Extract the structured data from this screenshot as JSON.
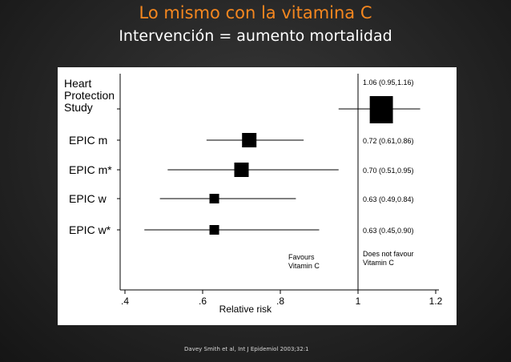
{
  "slide": {
    "title": "Lo mismo con la vitamina C",
    "subtitle": "Intervención = aumento mortalidad",
    "citation": "Davey Smith et al, Int J Epidemiol 2003;32:1"
  },
  "colors": {
    "background": "#262626",
    "title": "#f5871f",
    "subtitle": "#ffffff",
    "plot_ink": "#000000",
    "figure_background": "#ffffff"
  },
  "chart_data": {
    "type": "forest",
    "xlabel": "Relative risk",
    "xlim": [
      0.4,
      1.2
    ],
    "reference_line": 1,
    "ticks": [
      {
        "value": 0.4,
        "label": ".4"
      },
      {
        "value": 0.6,
        "label": ".6"
      },
      {
        "value": 0.8,
        "label": ".8"
      },
      {
        "value": 1,
        "label": "1"
      },
      {
        "value": 1.2,
        "label": "1.2"
      }
    ],
    "annotation_left": [
      "Favours",
      "Vitamin C"
    ],
    "annotation_right": [
      "Does not favour",
      "Vitamin C"
    ],
    "studies": [
      {
        "label_lines": [
          "Heart",
          "Protection",
          "Study"
        ],
        "estimate": 1.06,
        "ci_low": 0.95,
        "ci_high": 1.16,
        "text": "1.06 (0.95,1.16)",
        "weight": 3
      },
      {
        "label_lines": [
          "EPIC m"
        ],
        "estimate": 0.72,
        "ci_low": 0.61,
        "ci_high": 0.86,
        "text": "0.72 (0.61,0.86)",
        "weight": 2
      },
      {
        "label_lines": [
          "EPIC m*"
        ],
        "estimate": 0.7,
        "ci_low": 0.51,
        "ci_high": 0.95,
        "text": "0.70 (0.51,0.95)",
        "weight": 2
      },
      {
        "label_lines": [
          "EPIC w"
        ],
        "estimate": 0.63,
        "ci_low": 0.49,
        "ci_high": 0.84,
        "text": "0.63 (0.49,0.84)",
        "weight": 1
      },
      {
        "label_lines": [
          "EPIC w*"
        ],
        "estimate": 0.63,
        "ci_low": 0.45,
        "ci_high": 0.9,
        "text": "0.63 (0.45,0.90)",
        "weight": 1
      }
    ]
  }
}
